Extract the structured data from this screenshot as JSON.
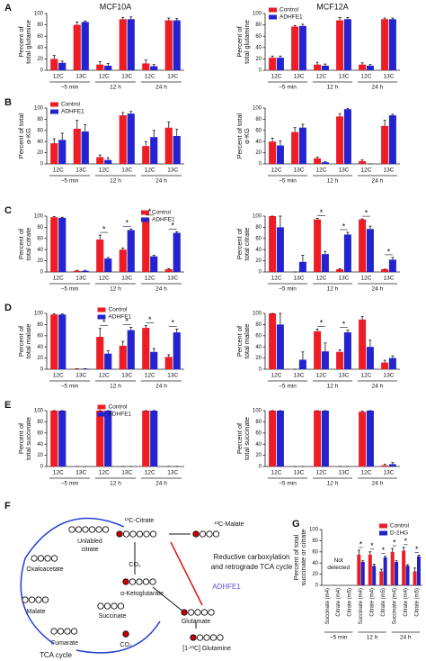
{
  "chart_data": [
    {
      "type": "bar",
      "panel_label": "A",
      "title": "MCF10A",
      "ylabel": [
        "Percent of",
        "total glutamine"
      ],
      "categories": [
        "12C",
        "13C",
        "12C",
        "13C",
        "12C",
        "13C"
      ],
      "groups": [
        "~5 min",
        "12 h",
        "24 h"
      ],
      "ylim": [
        0,
        100
      ],
      "yticks": [
        0,
        20,
        40,
        60,
        80,
        100
      ],
      "series": [
        {
          "name": "Control",
          "color": "#ee1c25",
          "values": [
            20,
            80,
            10,
            90,
            12,
            88
          ],
          "errors": [
            6,
            5,
            5,
            3,
            6,
            4
          ]
        },
        {
          "name": "ADHFE1",
          "color": "#2323d0",
          "values": [
            13,
            85,
            8,
            90,
            7,
            88
          ],
          "errors": [
            3,
            2,
            4,
            4,
            3,
            3
          ]
        }
      ],
      "legend": false
    },
    {
      "type": "bar",
      "title": "MCF12A",
      "ylabel": [
        "Percent of",
        "total glutamine"
      ],
      "categories": [
        "12C",
        "13C",
        "12C",
        "13C",
        "12C",
        "13C"
      ],
      "groups": [
        "~5 min",
        "12 h",
        "24 h"
      ],
      "ylim": [
        0,
        100
      ],
      "yticks": [
        0,
        20,
        40,
        60,
        80,
        100
      ],
      "series": [
        {
          "name": "Control",
          "color": "#ee1c25",
          "values": [
            22,
            77,
            10,
            88,
            10,
            90
          ],
          "errors": [
            3,
            2,
            4,
            5,
            3,
            2
          ]
        },
        {
          "name": "ADHFE1",
          "color": "#2323d0",
          "values": [
            22,
            78,
            8,
            90,
            8,
            90
          ],
          "errors": [
            3,
            3,
            3,
            3,
            2,
            2
          ]
        }
      ],
      "legend": true,
      "legend_position": "upper left"
    },
    {
      "type": "bar",
      "panel_label": "B",
      "ylabel": [
        "Percent of total",
        "α-KG"
      ],
      "categories": [
        "12C",
        "13C",
        "12C",
        "13C",
        "12C",
        "13C"
      ],
      "groups": [
        "~5 min",
        "12 h",
        "24 h"
      ],
      "ylim": [
        0,
        100
      ],
      "yticks": [
        0,
        20,
        40,
        60,
        80,
        100
      ],
      "series": [
        {
          "name": "Control",
          "color": "#ee1c25",
          "values": [
            37,
            63,
            12,
            87,
            32,
            65
          ],
          "errors": [
            8,
            15,
            4,
            5,
            8,
            10
          ]
        },
        {
          "name": "ADHFE1",
          "color": "#2323d0",
          "values": [
            43,
            58,
            7,
            90,
            48,
            50
          ],
          "errors": [
            12,
            12,
            4,
            4,
            12,
            12
          ]
        }
      ],
      "legend": true,
      "legend_position": "upper left"
    },
    {
      "type": "bar",
      "ylabel": [
        "Percent of total",
        "α-KG"
      ],
      "categories": [
        "12C",
        "13C",
        "12C",
        "13C",
        "12C",
        "13C"
      ],
      "groups": [
        "~5 min",
        "12 h",
        "24 h"
      ],
      "ylim": [
        0,
        100
      ],
      "yticks": [
        0,
        20,
        40,
        60,
        80,
        100
      ],
      "series": [
        {
          "name": "Control",
          "color": "#ee1c25",
          "values": [
            40,
            57,
            10,
            85,
            5,
            68
          ],
          "errors": [
            6,
            8,
            2,
            5,
            2,
            10
          ]
        },
        {
          "name": "ADHFE1",
          "color": "#2323d0",
          "values": [
            33,
            65,
            3,
            98,
            0,
            87
          ],
          "errors": [
            8,
            6,
            1,
            1,
            0,
            2
          ]
        }
      ],
      "legend": false
    },
    {
      "type": "bar",
      "panel_label": "C",
      "ylabel": [
        "Percent of",
        "total citrate"
      ],
      "categories": [
        "12C",
        "13C",
        "12C",
        "13C",
        "12C",
        "13C"
      ],
      "groups": [
        "~5 min",
        "12 h",
        "24 h"
      ],
      "ylim": [
        0,
        100
      ],
      "yticks": [
        0,
        20,
        40,
        60,
        80,
        100
      ],
      "series": [
        {
          "name": "Control",
          "color": "#ee1c25",
          "values": [
            98,
            2,
            58,
            40,
            95,
            5
          ],
          "errors": [
            1,
            1,
            8,
            3,
            2,
            1
          ]
        },
        {
          "name": "ADHFE1",
          "color": "#2323d0",
          "values": [
            97,
            2,
            24,
            75,
            28,
            70
          ],
          "errors": [
            1,
            1,
            2,
            2,
            2,
            2
          ]
        }
      ],
      "stars": [
        null,
        null,
        "*",
        "*",
        "*",
        "*"
      ],
      "legend": true,
      "legend_position": "upper right"
    },
    {
      "type": "bar",
      "ylabel": [
        "Percent of",
        "total citrate"
      ],
      "categories": [
        "12C",
        "13C",
        "12C",
        "13C",
        "12C",
        "13C"
      ],
      "groups": [
        "~5 min",
        "12 h",
        "24 h"
      ],
      "ylim": [
        0,
        100
      ],
      "yticks": [
        0,
        20,
        40,
        60,
        80,
        100
      ],
      "series": [
        {
          "name": "Control",
          "color": "#ee1c25",
          "values": [
            100,
            0,
            94,
            5,
            94,
            5
          ],
          "errors": [
            0,
            0,
            2,
            1,
            1,
            0
          ]
        },
        {
          "name": "ADHFE1",
          "color": "#2323d0",
          "values": [
            80,
            18,
            32,
            67,
            77,
            22
          ],
          "errors": [
            20,
            12,
            5,
            4,
            5,
            4
          ]
        }
      ],
      "stars": [
        null,
        null,
        "*",
        "*",
        "*",
        "*"
      ],
      "legend": false
    },
    {
      "type": "bar",
      "panel_label": "D",
      "ylabel": [
        "Percent of",
        "total malate"
      ],
      "categories": [
        "12C",
        "13C",
        "12C",
        "13C",
        "12C",
        "13C"
      ],
      "groups": [
        "~5 min",
        "12 h",
        "24 h"
      ],
      "ylim": [
        0,
        100
      ],
      "yticks": [
        0,
        20,
        40,
        60,
        80,
        100
      ],
      "series": [
        {
          "name": "Control",
          "color": "#ee1c25",
          "values": [
            98,
            1,
            58,
            42,
            74,
            22
          ],
          "errors": [
            1,
            0,
            15,
            8,
            4,
            4
          ]
        },
        {
          "name": "ADHFE1",
          "color": "#2323d0",
          "values": [
            98,
            1,
            28,
            70,
            31,
            66
          ],
          "errors": [
            1,
            0,
            5,
            5,
            6,
            6
          ]
        }
      ],
      "stars": [
        null,
        null,
        "*",
        "*",
        "*",
        "*"
      ],
      "legend": true,
      "legend_position": "upper center"
    },
    {
      "type": "bar",
      "ylabel": [
        "Percent of",
        "total malate"
      ],
      "categories": [
        "12C",
        "13C",
        "12C",
        "13C",
        "12C",
        "13C"
      ],
      "groups": [
        "~5 min",
        "12 h",
        "24 h"
      ],
      "ylim": [
        0,
        100
      ],
      "yticks": [
        0,
        20,
        40,
        60,
        80,
        100
      ],
      "series": [
        {
          "name": "Control",
          "color": "#ee1c25",
          "values": [
            100,
            0,
            68,
            31,
            89,
            12
          ],
          "errors": [
            0,
            0,
            4,
            4,
            5,
            4
          ]
        },
        {
          "name": "ADHFE1",
          "color": "#2323d0",
          "values": [
            80,
            17,
            32,
            66,
            40,
            20
          ],
          "errors": [
            20,
            14,
            15,
            4,
            12,
            4
          ]
        }
      ],
      "stars": [
        null,
        null,
        "*",
        "*",
        null,
        null
      ],
      "legend": false
    },
    {
      "type": "bar",
      "panel_label": "E",
      "ylabel": [
        "Percent of",
        "total succinate"
      ],
      "categories": [
        "12C",
        "13C",
        "12C",
        "13C",
        "12C",
        "13C"
      ],
      "groups": [
        "~5 min",
        "12 h",
        "24 h"
      ],
      "ylim": [
        0,
        100
      ],
      "yticks": [
        0,
        20,
        40,
        60,
        80,
        100
      ],
      "series": [
        {
          "name": "Control",
          "color": "#ee1c25",
          "values": [
            100,
            0,
            100,
            0,
            100,
            0
          ],
          "errors": [
            0,
            0,
            0,
            0,
            0,
            0
          ]
        },
        {
          "name": "ADHFE1",
          "color": "#2323d0",
          "values": [
            100,
            0,
            100,
            0,
            100,
            0
          ],
          "errors": [
            0,
            0,
            0,
            0,
            0,
            0
          ]
        }
      ],
      "legend": true,
      "legend_position": "upper center"
    },
    {
      "type": "bar",
      "ylabel": [
        "Percent of",
        "total succinate"
      ],
      "categories": [
        "12C",
        "13C",
        "12C",
        "13C",
        "12C",
        "13C"
      ],
      "groups": [
        "~5 min",
        "12 h",
        "24 h"
      ],
      "ylim": [
        0,
        100
      ],
      "yticks": [
        0,
        20,
        40,
        60,
        80,
        100
      ],
      "series": [
        {
          "name": "Control",
          "color": "#ee1c25",
          "values": [
            100,
            0,
            100,
            0,
            98,
            2
          ],
          "errors": [
            0,
            0,
            0,
            0,
            1,
            2
          ]
        },
        {
          "name": "ADHFE1",
          "color": "#2323d0",
          "values": [
            100,
            0,
            100,
            0,
            100,
            4
          ],
          "errors": [
            0,
            0,
            0,
            0,
            0,
            3
          ]
        }
      ],
      "legend": false
    },
    {
      "type": "bar",
      "panel_label": "G",
      "ylabel": [
        "Percent of total",
        "succinate or citrate"
      ],
      "categories": [
        "Succinate (m4)",
        "Citrate (m4)",
        "Citrate (m5)",
        "Succinate (m4)",
        "Citrate (m4)",
        "Citrate (m5)",
        "Succinate (m4)",
        "Citrate (m4)",
        "Citrate (m5)"
      ],
      "rotated_categories": true,
      "groups": [
        "~5 min",
        "12 h",
        "24 h"
      ],
      "note": [
        "Not",
        "detected"
      ],
      "ylim": [
        0,
        100
      ],
      "yticks": [
        0,
        20,
        40,
        60,
        80,
        100
      ],
      "series": [
        {
          "name": "Control",
          "color": "#ee1c25",
          "values": [
            null,
            null,
            null,
            55,
            55,
            25,
            60,
            62,
            25
          ],
          "errors": [
            null,
            null,
            null,
            8,
            5,
            4,
            6,
            6,
            6
          ]
        },
        {
          "name": "D-2HG",
          "color": "#2121c8",
          "values": [
            null,
            null,
            null,
            42,
            35,
            50,
            42,
            35,
            52
          ],
          "errors": [
            null,
            null,
            null,
            2,
            3,
            2,
            2,
            2,
            2
          ]
        }
      ],
      "stars": [
        null,
        null,
        null,
        "*",
        "*",
        "*",
        "*",
        "*",
        "*"
      ],
      "legend": true,
      "legend_position": "upper right"
    }
  ],
  "diagram": {
    "panel_label": "F",
    "citrate13": "¹³C-Citrate",
    "malate13": "¹³C-Malate",
    "unlabeled": [
      "Unlabled",
      "citrate"
    ],
    "oxaloacetate": "Oxaloacetate",
    "co2_top": "CO₂",
    "reductive": [
      "Reductive carboxylation",
      "and retrograde TCA cycle"
    ],
    "enzyme": "ADHFE1",
    "akg": "α-Ketoglutarate",
    "malate": "Malate",
    "succinate": "Succinate",
    "glutamate": "Glutamate",
    "fumarate": "Fumarate",
    "co2_bottom": "CO₂",
    "glutamine": "[1-¹³C] Glutamine",
    "cycle": "TCA cycle"
  }
}
